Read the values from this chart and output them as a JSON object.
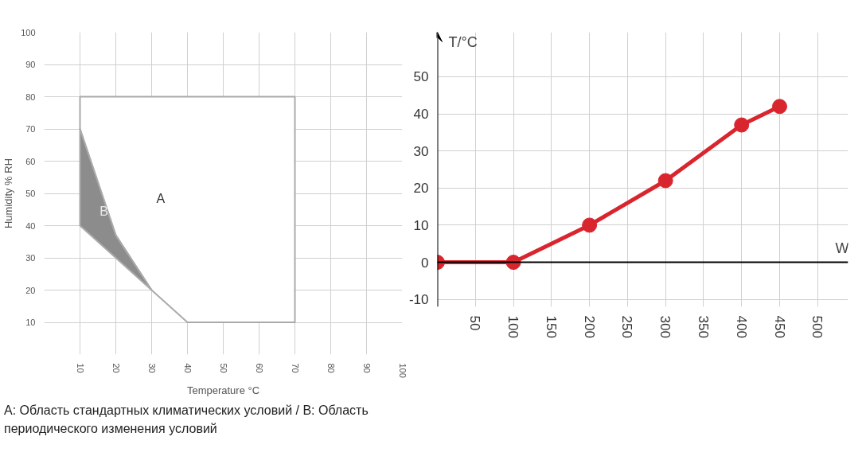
{
  "chart_data": [
    {
      "type": "area",
      "xlabel": "Temperature °C",
      "ylabel": "Humidity % RH",
      "xlim": [
        0,
        100
      ],
      "ylim": [
        0,
        100
      ],
      "xticks": [
        10,
        20,
        30,
        40,
        50,
        60,
        70,
        80,
        90,
        100
      ],
      "yticks": [
        10,
        20,
        30,
        40,
        50,
        60,
        70,
        80,
        90,
        100
      ],
      "grid": true,
      "series": [
        {
          "name": "A",
          "color": "#ffffff",
          "x": [
            10,
            70,
            70,
            40,
            30,
            20,
            10,
            10
          ],
          "values": [
            80,
            80,
            10,
            10,
            20,
            37,
            70,
            80
          ]
        },
        {
          "name": "B",
          "color": "#8c8c8c",
          "x": [
            10,
            20,
            30,
            20,
            10,
            10
          ],
          "values": [
            70,
            37,
            20,
            30,
            40,
            70
          ]
        }
      ],
      "annotations": [
        "A: Область стандартных климатических условий / B: Область периодического изменения условий"
      ]
    },
    {
      "type": "line",
      "xlabel": "W",
      "ylabel": "T/°C",
      "xlim": [
        0,
        540
      ],
      "ylim": [
        -12,
        62
      ],
      "xticks": [
        50,
        100,
        150,
        200,
        250,
        300,
        350,
        400,
        450,
        500
      ],
      "yticks": [
        -10,
        0,
        10,
        20,
        30,
        40,
        50
      ],
      "grid": true,
      "marker": "circle",
      "line_style": "solid",
      "series": [
        {
          "color": "#d9262e",
          "x": [
            0,
            100,
            200,
            300,
            400,
            450
          ],
          "values": [
            0,
            0,
            10,
            22,
            37,
            42
          ]
        }
      ]
    }
  ]
}
